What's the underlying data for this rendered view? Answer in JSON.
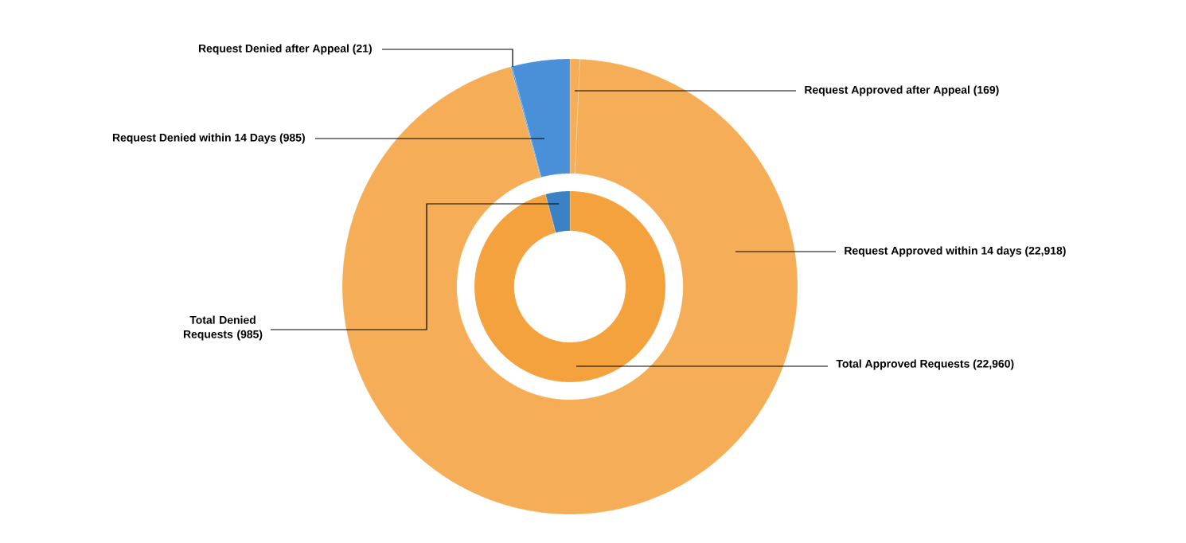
{
  "chart_data": [
    {
      "type": "donut",
      "categories": [
        "Request Approved after Appeal (169)",
        "Request Approved within 14 days (22,918)",
        "Request Denied after Appeal (21)",
        "Request Denied within 14 Days (985)"
      ],
      "values": [
        169,
        22918,
        21,
        985
      ],
      "colors": [
        "#f5ae57",
        "#f5ae57",
        "#4a90d9",
        "#4a90d9"
      ]
    },
    {
      "type": "donut",
      "categories": [
        "Total Approved Requests (22,960)",
        "Total Denied Requests (985)"
      ],
      "values": [
        22960,
        985
      ],
      "colors": [
        "#f4a23e",
        "#3b82c4"
      ]
    }
  ]
}
